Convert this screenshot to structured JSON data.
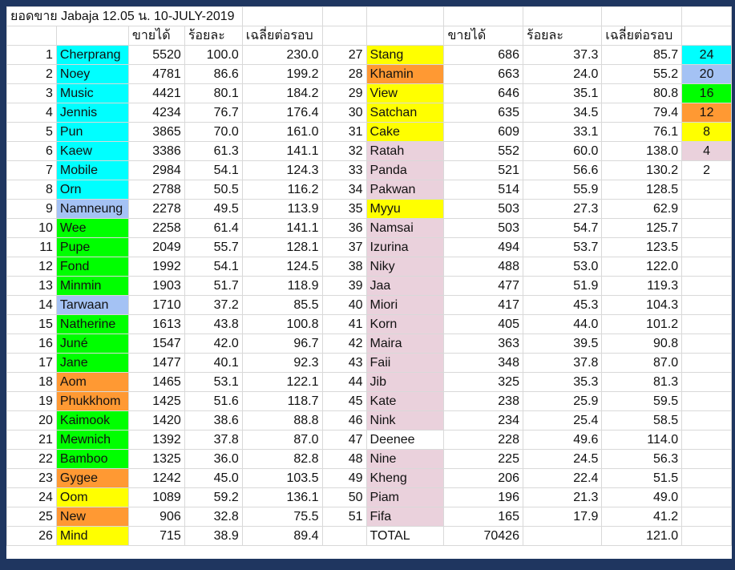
{
  "title": "ยอดขาย Jabaja 12.05 น. 10-JULY-2019",
  "headers": {
    "sales": "ขายได้",
    "percent": "ร้อยละ",
    "avg": "เฉลี่ยต่อรอบ"
  },
  "colors": {
    "cyan": "#00ffff",
    "blue": "#a4c2f4",
    "green": "#00ff00",
    "orange": "#ff9933",
    "yellow": "#ffff00",
    "pink": "#ead1dc",
    "none": "#ffffff"
  },
  "legend": [
    {
      "value": "24",
      "color": "cyan"
    },
    {
      "value": "20",
      "color": "blue"
    },
    {
      "value": "16",
      "color": "green"
    },
    {
      "value": "12",
      "color": "orange"
    },
    {
      "value": "8",
      "color": "yellow"
    },
    {
      "value": "4",
      "color": "pink"
    },
    {
      "value": "2",
      "color": "none"
    }
  ],
  "left": [
    {
      "rank": "1",
      "name": "Cherprang",
      "color": "cyan",
      "sales": "5520",
      "percent": "100.0",
      "avg": "230.0"
    },
    {
      "rank": "2",
      "name": "Noey",
      "color": "cyan",
      "sales": "4781",
      "percent": "86.6",
      "avg": "199.2"
    },
    {
      "rank": "3",
      "name": "Music",
      "color": "cyan",
      "sales": "4421",
      "percent": "80.1",
      "avg": "184.2"
    },
    {
      "rank": "4",
      "name": "Jennis",
      "color": "cyan",
      "sales": "4234",
      "percent": "76.7",
      "avg": "176.4"
    },
    {
      "rank": "5",
      "name": "Pun",
      "color": "cyan",
      "sales": "3865",
      "percent": "70.0",
      "avg": "161.0"
    },
    {
      "rank": "6",
      "name": "Kaew",
      "color": "cyan",
      "sales": "3386",
      "percent": "61.3",
      "avg": "141.1"
    },
    {
      "rank": "7",
      "name": "Mobile",
      "color": "cyan",
      "sales": "2984",
      "percent": "54.1",
      "avg": "124.3"
    },
    {
      "rank": "8",
      "name": "Orn",
      "color": "cyan",
      "sales": "2788",
      "percent": "50.5",
      "avg": "116.2"
    },
    {
      "rank": "9",
      "name": "Namneung",
      "color": "blue",
      "sales": "2278",
      "percent": "49.5",
      "avg": "113.9"
    },
    {
      "rank": "10",
      "name": "Wee",
      "color": "green",
      "sales": "2258",
      "percent": "61.4",
      "avg": "141.1"
    },
    {
      "rank": "11",
      "name": "Pupe",
      "color": "green",
      "sales": "2049",
      "percent": "55.7",
      "avg": "128.1"
    },
    {
      "rank": "12",
      "name": "Fond",
      "color": "green",
      "sales": "1992",
      "percent": "54.1",
      "avg": "124.5"
    },
    {
      "rank": "13",
      "name": "Minmin",
      "color": "green",
      "sales": "1903",
      "percent": "51.7",
      "avg": "118.9"
    },
    {
      "rank": "14",
      "name": "Tarwaan",
      "color": "blue",
      "sales": "1710",
      "percent": "37.2",
      "avg": "85.5"
    },
    {
      "rank": "15",
      "name": "Natherine",
      "color": "green",
      "sales": "1613",
      "percent": "43.8",
      "avg": "100.8"
    },
    {
      "rank": "16",
      "name": "Juné",
      "color": "green",
      "sales": "1547",
      "percent": "42.0",
      "avg": "96.7"
    },
    {
      "rank": "17",
      "name": "Jane",
      "color": "green",
      "sales": "1477",
      "percent": "40.1",
      "avg": "92.3"
    },
    {
      "rank": "18",
      "name": "Aom",
      "color": "orange",
      "sales": "1465",
      "percent": "53.1",
      "avg": "122.1"
    },
    {
      "rank": "19",
      "name": "Phukkhom",
      "color": "orange",
      "sales": "1425",
      "percent": "51.6",
      "avg": "118.7"
    },
    {
      "rank": "20",
      "name": "Kaimook",
      "color": "green",
      "sales": "1420",
      "percent": "38.6",
      "avg": "88.8"
    },
    {
      "rank": "21",
      "name": "Mewnich",
      "color": "green",
      "sales": "1392",
      "percent": "37.8",
      "avg": "87.0"
    },
    {
      "rank": "22",
      "name": "Bamboo",
      "color": "green",
      "sales": "1325",
      "percent": "36.0",
      "avg": "82.8"
    },
    {
      "rank": "23",
      "name": "Gygee",
      "color": "orange",
      "sales": "1242",
      "percent": "45.0",
      "avg": "103.5"
    },
    {
      "rank": "24",
      "name": "Oom",
      "color": "yellow",
      "sales": "1089",
      "percent": "59.2",
      "avg": "136.1"
    },
    {
      "rank": "25",
      "name": "New",
      "color": "orange",
      "sales": "906",
      "percent": "32.8",
      "avg": "75.5"
    },
    {
      "rank": "26",
      "name": "Mind",
      "color": "yellow",
      "sales": "715",
      "percent": "38.9",
      "avg": "89.4"
    }
  ],
  "right": [
    {
      "rank": "27",
      "name": "Stang",
      "color": "yellow",
      "sales": "686",
      "percent": "37.3",
      "avg": "85.7"
    },
    {
      "rank": "28",
      "name": "Khamin",
      "color": "orange",
      "sales": "663",
      "percent": "24.0",
      "avg": "55.2"
    },
    {
      "rank": "29",
      "name": "View",
      "color": "yellow",
      "sales": "646",
      "percent": "35.1",
      "avg": "80.8"
    },
    {
      "rank": "30",
      "name": "Satchan",
      "color": "yellow",
      "sales": "635",
      "percent": "34.5",
      "avg": "79.4"
    },
    {
      "rank": "31",
      "name": "Cake",
      "color": "yellow",
      "sales": "609",
      "percent": "33.1",
      "avg": "76.1"
    },
    {
      "rank": "32",
      "name": "Ratah",
      "color": "pink",
      "sales": "552",
      "percent": "60.0",
      "avg": "138.0"
    },
    {
      "rank": "33",
      "name": "Panda",
      "color": "pink",
      "sales": "521",
      "percent": "56.6",
      "avg": "130.2"
    },
    {
      "rank": "34",
      "name": "Pakwan",
      "color": "pink",
      "sales": "514",
      "percent": "55.9",
      "avg": "128.5"
    },
    {
      "rank": "35",
      "name": "Myyu",
      "color": "yellow",
      "sales": "503",
      "percent": "27.3",
      "avg": "62.9"
    },
    {
      "rank": "36",
      "name": "Namsai",
      "color": "pink",
      "sales": "503",
      "percent": "54.7",
      "avg": "125.7"
    },
    {
      "rank": "37",
      "name": "Izurina",
      "color": "pink",
      "sales": "494",
      "percent": "53.7",
      "avg": "123.5"
    },
    {
      "rank": "38",
      "name": "Niky",
      "color": "pink",
      "sales": "488",
      "percent": "53.0",
      "avg": "122.0"
    },
    {
      "rank": "39",
      "name": "Jaa",
      "color": "pink",
      "sales": "477",
      "percent": "51.9",
      "avg": "119.3"
    },
    {
      "rank": "40",
      "name": "Miori",
      "color": "pink",
      "sales": "417",
      "percent": "45.3",
      "avg": "104.3"
    },
    {
      "rank": "41",
      "name": "Korn",
      "color": "pink",
      "sales": "405",
      "percent": "44.0",
      "avg": "101.2"
    },
    {
      "rank": "42",
      "name": "Maira",
      "color": "pink",
      "sales": "363",
      "percent": "39.5",
      "avg": "90.8"
    },
    {
      "rank": "43",
      "name": "Faii",
      "color": "pink",
      "sales": "348",
      "percent": "37.8",
      "avg": "87.0"
    },
    {
      "rank": "44",
      "name": "Jib",
      "color": "pink",
      "sales": "325",
      "percent": "35.3",
      "avg": "81.3"
    },
    {
      "rank": "45",
      "name": "Kate",
      "color": "pink",
      "sales": "238",
      "percent": "25.9",
      "avg": "59.5"
    },
    {
      "rank": "46",
      "name": "Nink",
      "color": "pink",
      "sales": "234",
      "percent": "25.4",
      "avg": "58.5"
    },
    {
      "rank": "47",
      "name": "Deenee",
      "color": "none",
      "sales": "228",
      "percent": "49.6",
      "avg": "114.0"
    },
    {
      "rank": "48",
      "name": "Nine",
      "color": "pink",
      "sales": "225",
      "percent": "24.5",
      "avg": "56.3"
    },
    {
      "rank": "49",
      "name": "Kheng",
      "color": "pink",
      "sales": "206",
      "percent": "22.4",
      "avg": "51.5"
    },
    {
      "rank": "50",
      "name": "Piam",
      "color": "pink",
      "sales": "196",
      "percent": "21.3",
      "avg": "49.0"
    },
    {
      "rank": "51",
      "name": "Fifa",
      "color": "pink",
      "sales": "165",
      "percent": "17.9",
      "avg": "41.2"
    }
  ],
  "total": {
    "label": "TOTAL",
    "sales": "70426",
    "avg": "121.0"
  }
}
